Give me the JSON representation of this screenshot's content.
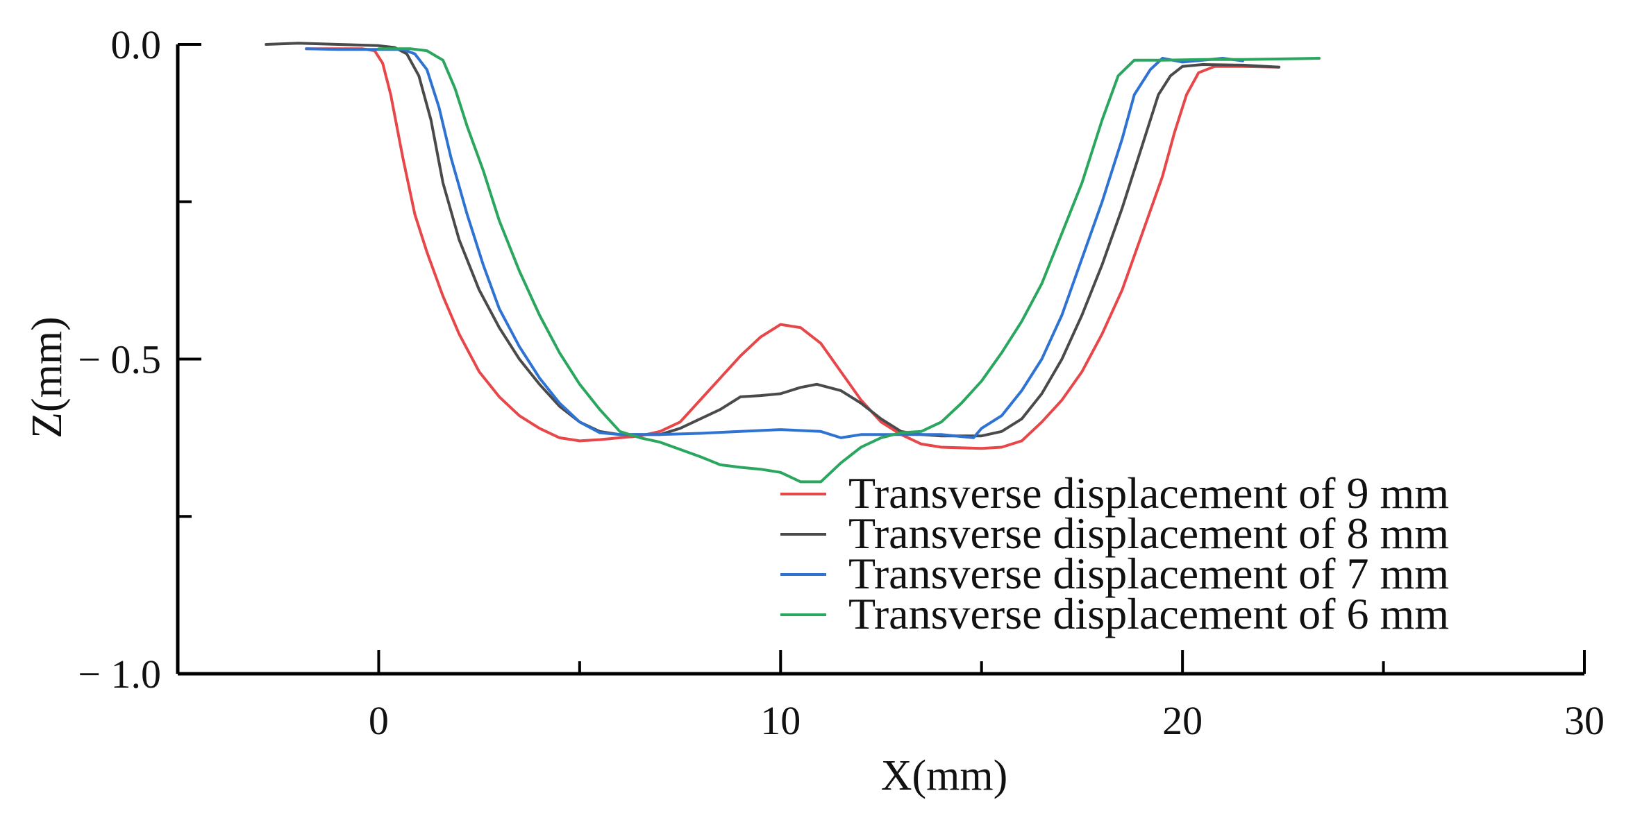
{
  "chart_data": {
    "type": "line",
    "title": "",
    "xlabel": "X(mm)",
    "ylabel": "Z(mm)",
    "xlim": [
      -5,
      30
    ],
    "ylim": [
      -1.0,
      0.0
    ],
    "x_ticks": [
      0,
      10,
      20,
      30
    ],
    "x_tick_labels": [
      "0",
      "10",
      "20",
      "30"
    ],
    "x_minor_ticks": [
      5,
      15,
      25
    ],
    "y_ticks": [
      0.0,
      -0.5,
      -1.0
    ],
    "y_tick_labels": [
      "0.0",
      "− 0.5",
      "− 1.0"
    ],
    "y_minor_ticks": [
      -0.25,
      -0.75
    ],
    "grid": false,
    "legend_position": "bottom-right",
    "series": [
      {
        "name": "Transverse displacement of 9 mm",
        "color": "#e8474a",
        "points": [
          [
            -1.8,
            -0.007
          ],
          [
            -1.0,
            -0.007
          ],
          [
            -0.4,
            -0.007
          ],
          [
            -0.1,
            -0.01
          ],
          [
            0.1,
            -0.03
          ],
          [
            0.3,
            -0.08
          ],
          [
            0.6,
            -0.18
          ],
          [
            0.9,
            -0.27
          ],
          [
            1.2,
            -0.33
          ],
          [
            1.6,
            -0.4
          ],
          [
            2.0,
            -0.46
          ],
          [
            2.5,
            -0.52
          ],
          [
            3.0,
            -0.56
          ],
          [
            3.5,
            -0.59
          ],
          [
            4.0,
            -0.61
          ],
          [
            4.5,
            -0.625
          ],
          [
            5.0,
            -0.63
          ],
          [
            5.5,
            -0.628
          ],
          [
            6.0,
            -0.625
          ],
          [
            6.5,
            -0.622
          ],
          [
            7.0,
            -0.615
          ],
          [
            7.5,
            -0.6
          ],
          [
            8.0,
            -0.565
          ],
          [
            8.5,
            -0.53
          ],
          [
            9.0,
            -0.495
          ],
          [
            9.5,
            -0.465
          ],
          [
            10.0,
            -0.445
          ],
          [
            10.5,
            -0.45
          ],
          [
            11.0,
            -0.475
          ],
          [
            11.5,
            -0.52
          ],
          [
            12.0,
            -0.565
          ],
          [
            12.5,
            -0.6
          ],
          [
            13.0,
            -0.62
          ],
          [
            13.5,
            -0.635
          ],
          [
            14.0,
            -0.64
          ],
          [
            15.0,
            -0.642
          ],
          [
            15.5,
            -0.64
          ],
          [
            16.0,
            -0.63
          ],
          [
            16.5,
            -0.6
          ],
          [
            17.0,
            -0.565
          ],
          [
            17.5,
            -0.52
          ],
          [
            18.0,
            -0.46
          ],
          [
            18.5,
            -0.39
          ],
          [
            19.0,
            -0.3
          ],
          [
            19.5,
            -0.21
          ],
          [
            19.8,
            -0.14
          ],
          [
            20.1,
            -0.08
          ],
          [
            20.4,
            -0.045
          ],
          [
            20.8,
            -0.035
          ],
          [
            21.5,
            -0.035
          ],
          [
            22.4,
            -0.036
          ]
        ]
      },
      {
        "name": "Transverse displacement of 8 mm",
        "color": "#4a4a4a",
        "points": [
          [
            -2.8,
            0.0
          ],
          [
            -2.0,
            0.002
          ],
          [
            -1.0,
            0.0
          ],
          [
            0.0,
            -0.002
          ],
          [
            0.4,
            -0.005
          ],
          [
            0.7,
            -0.015
          ],
          [
            1.0,
            -0.05
          ],
          [
            1.3,
            -0.12
          ],
          [
            1.6,
            -0.22
          ],
          [
            2.0,
            -0.31
          ],
          [
            2.5,
            -0.39
          ],
          [
            3.0,
            -0.45
          ],
          [
            3.5,
            -0.5
          ],
          [
            4.0,
            -0.54
          ],
          [
            4.5,
            -0.575
          ],
          [
            5.0,
            -0.6
          ],
          [
            5.5,
            -0.615
          ],
          [
            6.0,
            -0.62
          ],
          [
            7.0,
            -0.62
          ],
          [
            7.5,
            -0.61
          ],
          [
            8.0,
            -0.595
          ],
          [
            8.5,
            -0.58
          ],
          [
            9.0,
            -0.56
          ],
          [
            9.5,
            -0.558
          ],
          [
            10.0,
            -0.555
          ],
          [
            10.5,
            -0.545
          ],
          [
            10.9,
            -0.54
          ],
          [
            11.5,
            -0.55
          ],
          [
            12.0,
            -0.57
          ],
          [
            12.5,
            -0.595
          ],
          [
            13.0,
            -0.615
          ],
          [
            13.5,
            -0.62
          ],
          [
            14.0,
            -0.622
          ],
          [
            15.0,
            -0.622
          ],
          [
            15.5,
            -0.615
          ],
          [
            16.0,
            -0.595
          ],
          [
            16.5,
            -0.555
          ],
          [
            17.0,
            -0.5
          ],
          [
            17.5,
            -0.43
          ],
          [
            18.0,
            -0.35
          ],
          [
            18.5,
            -0.26
          ],
          [
            19.0,
            -0.16
          ],
          [
            19.4,
            -0.08
          ],
          [
            19.7,
            -0.05
          ],
          [
            20.0,
            -0.035
          ],
          [
            20.5,
            -0.032
          ],
          [
            21.5,
            -0.033
          ],
          [
            22.4,
            -0.036
          ]
        ]
      },
      {
        "name": "Transverse displacement of 7 mm",
        "color": "#2e72d2",
        "points": [
          [
            -1.8,
            -0.007
          ],
          [
            -1.0,
            -0.008
          ],
          [
            0.0,
            -0.008
          ],
          [
            0.6,
            -0.008
          ],
          [
            0.9,
            -0.015
          ],
          [
            1.2,
            -0.04
          ],
          [
            1.5,
            -0.1
          ],
          [
            1.8,
            -0.18
          ],
          [
            2.2,
            -0.27
          ],
          [
            2.6,
            -0.35
          ],
          [
            3.0,
            -0.42
          ],
          [
            3.5,
            -0.48
          ],
          [
            4.0,
            -0.53
          ],
          [
            4.5,
            -0.57
          ],
          [
            5.0,
            -0.6
          ],
          [
            5.5,
            -0.617
          ],
          [
            6.0,
            -0.62
          ],
          [
            7.0,
            -0.62
          ],
          [
            8.0,
            -0.618
          ],
          [
            9.0,
            -0.615
          ],
          [
            10.0,
            -0.612
          ],
          [
            11.0,
            -0.615
          ],
          [
            11.5,
            -0.625
          ],
          [
            12.0,
            -0.62
          ],
          [
            13.0,
            -0.62
          ],
          [
            14.0,
            -0.62
          ],
          [
            14.8,
            -0.625
          ],
          [
            15.0,
            -0.61
          ],
          [
            15.5,
            -0.59
          ],
          [
            16.0,
            -0.55
          ],
          [
            16.5,
            -0.5
          ],
          [
            17.0,
            -0.43
          ],
          [
            17.5,
            -0.34
          ],
          [
            18.0,
            -0.25
          ],
          [
            18.5,
            -0.15
          ],
          [
            18.8,
            -0.08
          ],
          [
            19.2,
            -0.04
          ],
          [
            19.5,
            -0.022
          ],
          [
            20.0,
            -0.028
          ],
          [
            20.5,
            -0.025
          ],
          [
            21.0,
            -0.022
          ],
          [
            21.5,
            -0.026
          ]
        ]
      },
      {
        "name": "Transverse displacement of 6 mm",
        "color": "#2aa65e",
        "points": [
          [
            0.0,
            -0.007
          ],
          [
            0.8,
            -0.007
          ],
          [
            1.2,
            -0.01
          ],
          [
            1.6,
            -0.025
          ],
          [
            1.9,
            -0.07
          ],
          [
            2.2,
            -0.13
          ],
          [
            2.6,
            -0.2
          ],
          [
            3.0,
            -0.28
          ],
          [
            3.5,
            -0.36
          ],
          [
            4.0,
            -0.43
          ],
          [
            4.5,
            -0.49
          ],
          [
            5.0,
            -0.54
          ],
          [
            5.5,
            -0.58
          ],
          [
            6.0,
            -0.615
          ],
          [
            6.5,
            -0.625
          ],
          [
            7.0,
            -0.632
          ],
          [
            8.0,
            -0.655
          ],
          [
            8.5,
            -0.668
          ],
          [
            9.0,
            -0.672
          ],
          [
            9.5,
            -0.675
          ],
          [
            10.0,
            -0.68
          ],
          [
            10.5,
            -0.695
          ],
          [
            11.0,
            -0.695
          ],
          [
            11.5,
            -0.665
          ],
          [
            12.0,
            -0.64
          ],
          [
            12.5,
            -0.625
          ],
          [
            13.0,
            -0.617
          ],
          [
            13.5,
            -0.615
          ],
          [
            14.0,
            -0.6
          ],
          [
            14.5,
            -0.57
          ],
          [
            15.0,
            -0.535
          ],
          [
            15.5,
            -0.49
          ],
          [
            16.0,
            -0.44
          ],
          [
            16.5,
            -0.38
          ],
          [
            17.0,
            -0.3
          ],
          [
            17.5,
            -0.22
          ],
          [
            18.0,
            -0.12
          ],
          [
            18.4,
            -0.05
          ],
          [
            18.8,
            -0.025
          ],
          [
            19.5,
            -0.025
          ],
          [
            20.5,
            -0.024
          ],
          [
            21.5,
            -0.024
          ],
          [
            22.5,
            -0.023
          ],
          [
            23.4,
            -0.022
          ]
        ]
      }
    ]
  }
}
